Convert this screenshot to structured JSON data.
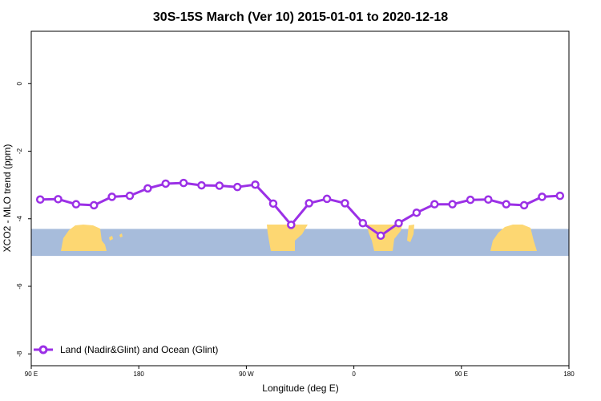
{
  "chart_data": {
    "type": "line",
    "title": "30S-15S March (Ver 10)   2015-01-01 to 2020-12-18",
    "xlabel": "Longitude (deg E)",
    "ylabel": "XCO2 - MLO trend (ppm)",
    "xlim": [
      90,
      540
    ],
    "ylim": [
      -8.35,
      1.55
    ],
    "x_ticks": [
      {
        "value": 90,
        "label": "90 E"
      },
      {
        "value": 180,
        "label": "180"
      },
      {
        "value": 270,
        "label": "90 W"
      },
      {
        "value": 360,
        "label": "0"
      },
      {
        "value": 450,
        "label": "90 E"
      },
      {
        "value": 540,
        "label": "180"
      }
    ],
    "y_ticks": [
      {
        "value": 0,
        "label": "0"
      },
      {
        "value": -2,
        "label": "-2"
      },
      {
        "value": -4,
        "label": "-4"
      },
      {
        "value": -6,
        "label": "-6"
      },
      {
        "value": -8,
        "label": "-8"
      }
    ],
    "grid": false,
    "legend_position": "bottom-left",
    "background_map": {
      "lat_range": "30S-15S",
      "y_band": [
        -5.1,
        -4.3
      ],
      "ocean_color": "#a7bcdb",
      "land_color": "#fdd772"
    },
    "series": [
      {
        "name": "Land (Nadir&Glint) and Ocean (Glint)",
        "color": "#9b30e6",
        "x": [
          97.5,
          112.5,
          127.5,
          142.5,
          157.5,
          172.5,
          187.5,
          202.5,
          217.5,
          232.5,
          247.5,
          262.5,
          277.5,
          292.5,
          307.5,
          322.5,
          337.5,
          352.5,
          367.5,
          382.5,
          397.5,
          412.5,
          427.5,
          442.5,
          457.5,
          472.5,
          487.5,
          502.5,
          517.5,
          532.5
        ],
        "values": [
          -3.43,
          -3.42,
          -3.57,
          -3.6,
          -3.35,
          -3.32,
          -3.1,
          -2.96,
          -2.94,
          -3.01,
          -3.02,
          -3.06,
          -2.99,
          -3.55,
          -4.18,
          -3.54,
          -3.41,
          -3.54,
          -4.13,
          -4.5,
          -4.13,
          -3.82,
          -3.57,
          -3.57,
          -3.44,
          -3.43,
          -3.57,
          -3.6,
          -3.35,
          -3.32
        ]
      }
    ]
  }
}
